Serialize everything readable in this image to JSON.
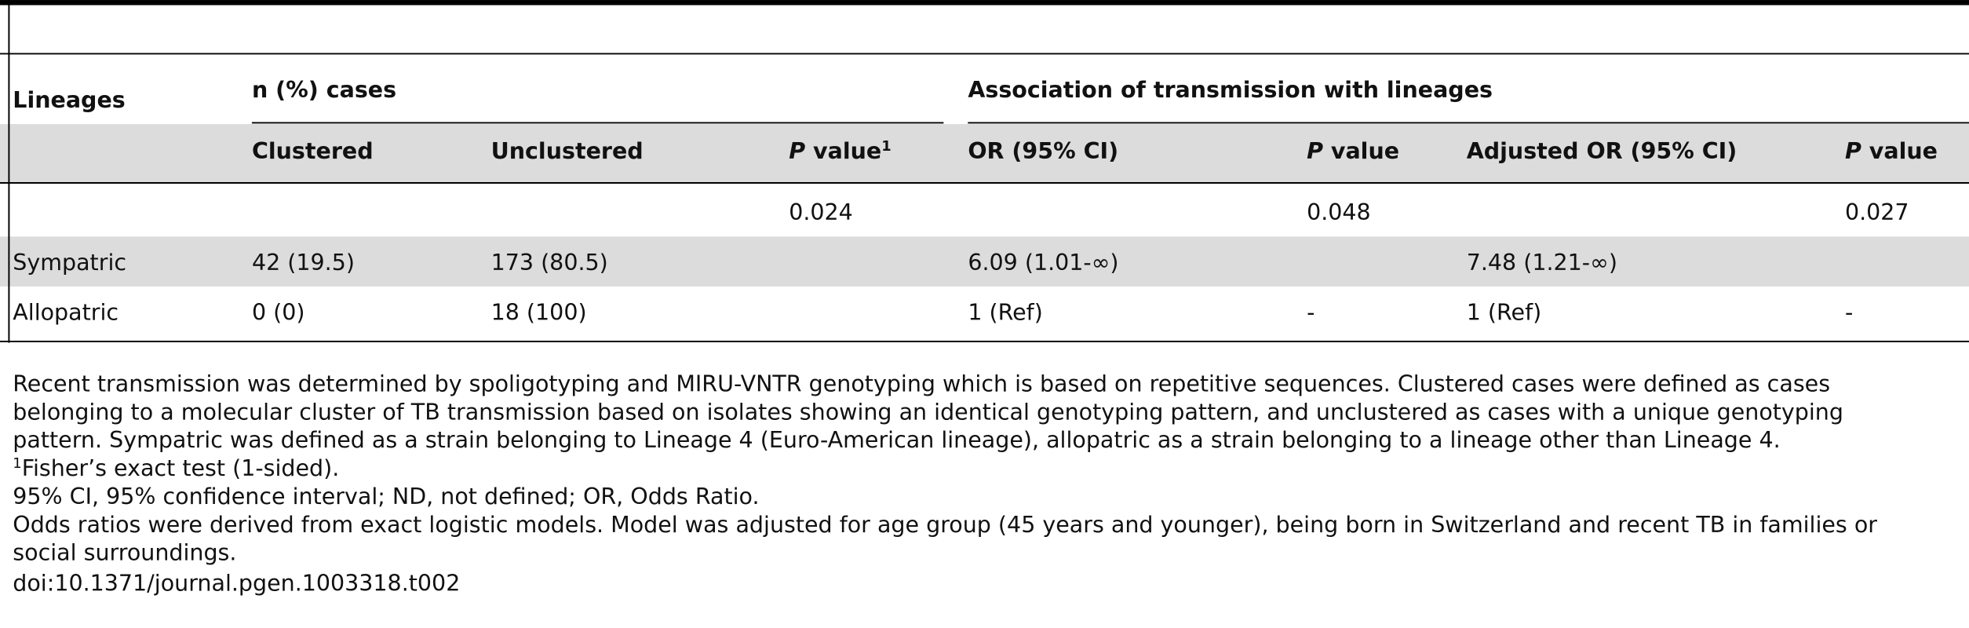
{
  "table": {
    "row_header": "Lineages",
    "group_headers": [
      "n (%) cases",
      "Association of transmission with lineages"
    ],
    "columns": [
      "Clustered",
      "Unclustered",
      [
        "P",
        " value",
        "1"
      ],
      "OR (95% CI)",
      [
        "P",
        " value"
      ],
      "Adjusted OR (95% CI)",
      [
        "P",
        " value"
      ]
    ],
    "rows": [
      [
        null,
        null,
        null,
        "0.024",
        null,
        "0.048",
        null,
        "0.027"
      ],
      [
        "Sympatric",
        "42 (19.5)",
        "173 (80.5)",
        null,
        "6.09 (1.01-∞)",
        null,
        "7.48 (1.21-∞)",
        null
      ],
      [
        "Allopatric",
        "0 (0)",
        "18 (100)",
        null,
        "1 (Ref)",
        "-",
        "1 (Ref)",
        "-"
      ]
    ]
  },
  "footnotes": [
    [
      "Recent transmission was determined by spoligotyping and MIRU-VNTR genotyping which is based on repetitive sequences. Clustered cases were defined as cases"
    ],
    [
      "belonging to a molecular cluster of TB transmission based on isolates showing an identical genotyping pattern, and unclustered as cases with a unique genotyping"
    ],
    [
      "pattern. Sympatric was defined as a strain belonging to Lineage 4 (Euro-American lineage), allopatric as a strain belonging to a lineage other than Lineage 4."
    ],
    [
      "1",
      "Fisher’s exact test (1-sided)."
    ],
    [
      "95% CI, 95% confidence interval; ND, not defined; OR, Odds Ratio."
    ],
    [
      "Odds ratios were derived from exact logistic models. Model was adjusted for age group (45 years and younger), being born in Switzerland and recent TB in families or"
    ],
    [
      "social surroundings."
    ],
    [
      "doi:10.1371/journal.pgen.1003318.t002"
    ]
  ]
}
